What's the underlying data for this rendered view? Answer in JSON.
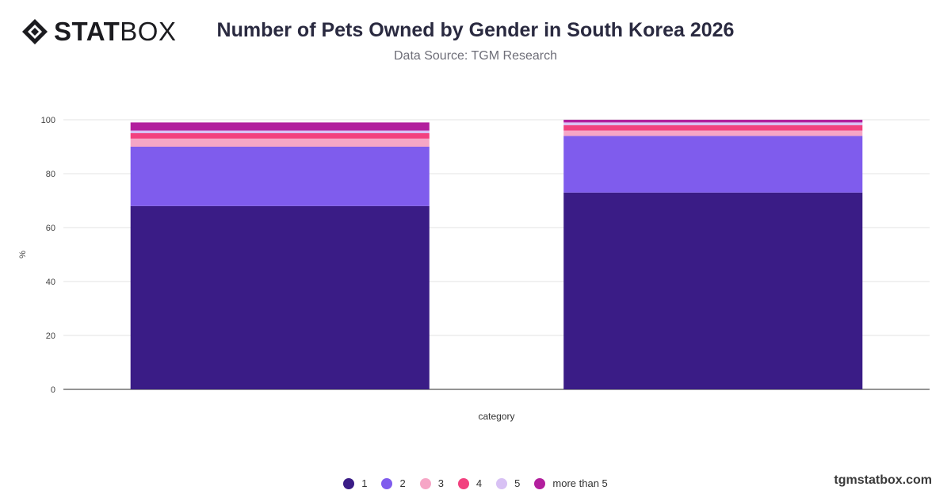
{
  "brand": {
    "logo_bold": "STAT",
    "logo_light": "BOX"
  },
  "header": {
    "title": "Number of Pets Owned by Gender in South Korea 2026",
    "subtitle": "Data Source: TGM Research"
  },
  "footer": {
    "site": "tgmstatbox.com"
  },
  "colors": {
    "1": "#3a1c86",
    "2": "#7f5ced",
    "3": "#f6a6c6",
    "4": "#f2417f",
    "5": "#d8c1f4",
    "more than 5": "#b21f9d"
  },
  "chart_data": {
    "type": "bar",
    "stacked": true,
    "categories": [
      "",
      ""
    ],
    "xlabel": "category",
    "ylabel": "%",
    "ylim": [
      0,
      100
    ],
    "yticks": [
      0,
      20,
      40,
      60,
      80,
      100
    ],
    "grid": true,
    "legend_position": "bottom",
    "series": [
      {
        "name": "1",
        "values": [
          68,
          73
        ]
      },
      {
        "name": "2",
        "values": [
          22,
          21
        ]
      },
      {
        "name": "3",
        "values": [
          3,
          2
        ]
      },
      {
        "name": "4",
        "values": [
          2,
          2
        ]
      },
      {
        "name": "5",
        "values": [
          1,
          1
        ]
      },
      {
        "name": "more than 5",
        "values": [
          3,
          1
        ]
      }
    ]
  }
}
